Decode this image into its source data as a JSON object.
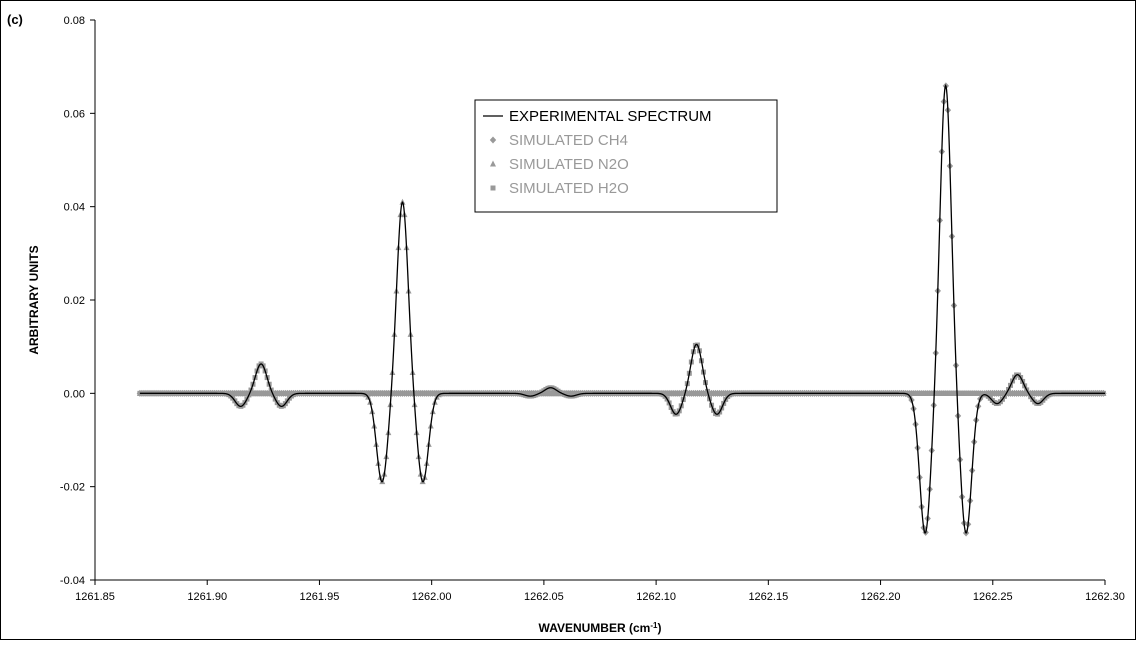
{
  "panel_label": "(c)",
  "chart_data": {
    "type": "line",
    "title": "",
    "xlabel": "WAVENUMBER (cm",
    "xlabel_sup": "-1",
    "xlabel_suffix": ")",
    "ylabel": "ARBITRARY UNITS",
    "xlim": [
      1261.85,
      1262.3
    ],
    "ylim": [
      -0.04,
      0.08
    ],
    "x_ticks": [
      "1261.85",
      "1261.90",
      "1261.95",
      "1262.00",
      "1262.05",
      "1262.10",
      "1262.15",
      "1262.20",
      "1262.25",
      "1262.30"
    ],
    "y_ticks": [
      "-0.04",
      "-0.02",
      "0.00",
      "0.02",
      "0.04",
      "0.06",
      "0.08"
    ],
    "grid": false,
    "legend_position": "top-center",
    "colors": {
      "experimental": "#000000",
      "simulated": "#999999",
      "simulated_text": "#999999"
    },
    "series": [
      {
        "name": "EXPERIMENTAL SPECTRUM",
        "marker": "line",
        "peaks": [
          {
            "center": 1261.924,
            "amp": 0.0063,
            "width": 0.0035,
            "lobe": 0.0028
          },
          {
            "center": 1261.987,
            "amp": 0.041,
            "width": 0.0035,
            "lobe": 0.019
          },
          {
            "center": 1262.053,
            "amp": 0.0012,
            "width": 0.0035,
            "lobe": 0.0006
          },
          {
            "center": 1262.118,
            "amp": 0.0105,
            "width": 0.0035,
            "lobe": 0.0045
          },
          {
            "center": 1262.229,
            "amp": 0.066,
            "width": 0.0035,
            "lobe": 0.03
          },
          {
            "center": 1262.261,
            "amp": 0.004,
            "width": 0.0035,
            "lobe": 0.0022
          }
        ]
      },
      {
        "name": "SIMULATED CH4",
        "marker": "diamond",
        "peaks": [
          {
            "center": 1262.229,
            "amp": 0.066,
            "width": 0.0035,
            "lobe": 0.03
          }
        ]
      },
      {
        "name": "SIMULATED N2O",
        "marker": "triangle",
        "peaks": [
          {
            "center": 1261.987,
            "amp": 0.041,
            "width": 0.0035,
            "lobe": 0.019
          }
        ]
      },
      {
        "name": "SIMULATED H2O",
        "marker": "square",
        "peaks": [
          {
            "center": 1261.924,
            "amp": 0.0063,
            "width": 0.0035,
            "lobe": 0.0028
          },
          {
            "center": 1262.053,
            "amp": 0.0012,
            "width": 0.0035,
            "lobe": 0.0006
          },
          {
            "center": 1262.118,
            "amp": 0.0105,
            "width": 0.0035,
            "lobe": 0.0045
          },
          {
            "center": 1262.261,
            "amp": 0.004,
            "width": 0.0035,
            "lobe": 0.0022
          }
        ]
      }
    ],
    "x_range_data": [
      1261.87,
      1262.3
    ]
  }
}
